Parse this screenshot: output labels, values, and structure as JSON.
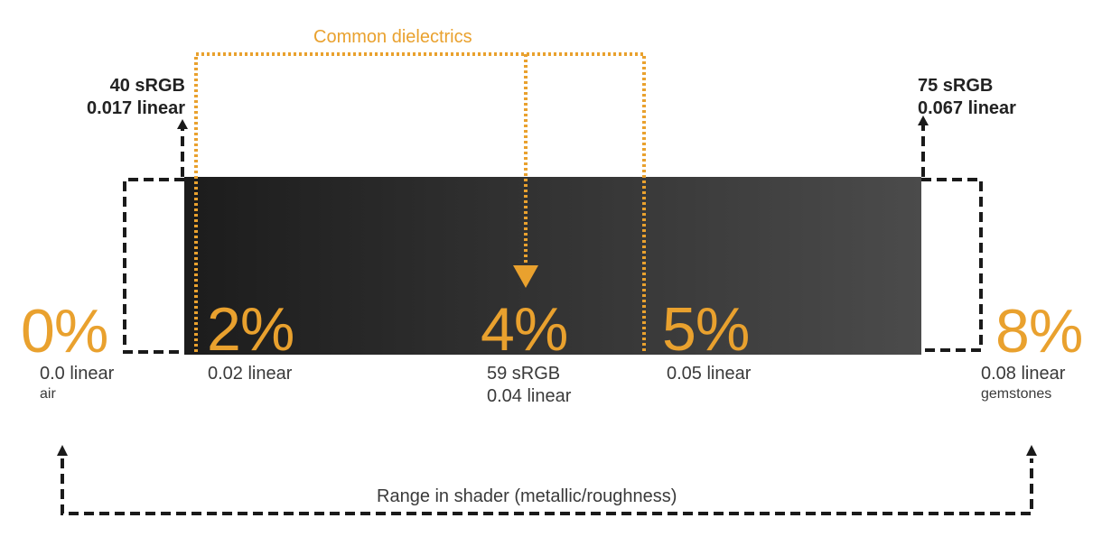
{
  "common_dielectrics": "Common dielectrics",
  "low_marker": {
    "srgb": "40 sRGB",
    "linear": "0.017 linear"
  },
  "high_marker": {
    "srgb": "75 sRGB",
    "linear": "0.067 linear"
  },
  "points": {
    "p0": {
      "percent": "0%",
      "linear": "0.0 linear",
      "note": "air"
    },
    "p2": {
      "percent": "2%",
      "linear": "0.02 linear"
    },
    "p4": {
      "percent": "4%",
      "srgb": "59 sRGB",
      "linear": "0.04 linear"
    },
    "p5": {
      "percent": "5%",
      "linear": "0.05 linear"
    },
    "p8": {
      "percent": "8%",
      "linear": "0.08 linear",
      "note": "gemstones"
    }
  },
  "range_label": "Range in shader (metallic/roughness)",
  "colors": {
    "accent": "#E9A12E",
    "dark_text": "#222222",
    "gradient_start": "#1c1c1c",
    "gradient_end": "#4b4b4b"
  }
}
